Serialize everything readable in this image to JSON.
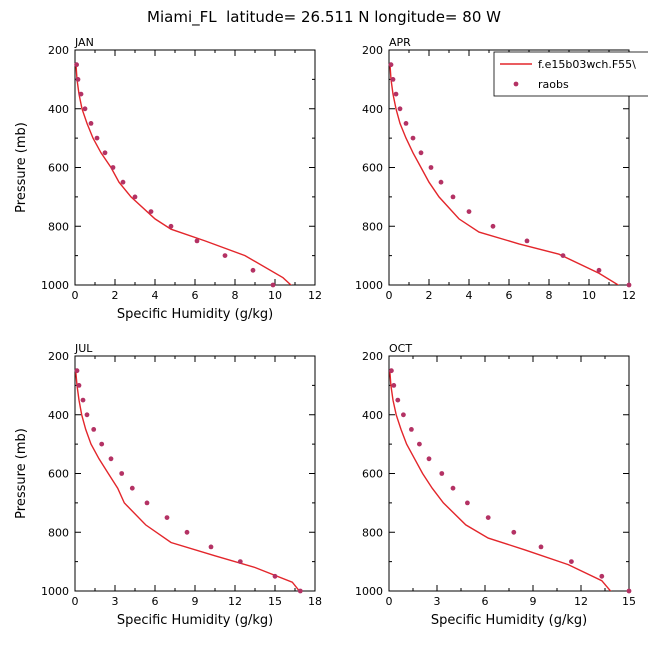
{
  "figure_title": "Miami_FL  latitude= 26.511 N longitude= 80 W",
  "colors": {
    "model_line": "#e3262b",
    "raobs_marker": "#b43264",
    "axes": "#000000"
  },
  "chart_data": [
    {
      "type": "line",
      "title": "JAN",
      "xlabel": "Specific Humidity (g/kg)",
      "ylabel": "Pressure (mb)",
      "xlim": [
        0,
        12
      ],
      "ylim": [
        1000,
        200
      ],
      "y_inverted": true,
      "xticks": [
        0,
        2,
        4,
        6,
        8,
        10,
        12
      ],
      "yticks": [
        200,
        400,
        600,
        800,
        1000
      ],
      "legend": null,
      "series": [
        {
          "name": "f.e15b03wch.F55\\",
          "style": "line",
          "x": [
            11.0,
            10.4,
            8.5,
            6.5,
            4.8,
            4.0,
            2.8,
            2.2,
            1.8,
            1.3,
            0.9,
            0.6,
            0.35,
            0.2,
            0.1,
            0.05
          ],
          "y": [
            1013,
            975,
            900,
            850,
            810,
            775,
            700,
            650,
            600,
            550,
            500,
            450,
            400,
            350,
            300,
            250
          ]
        },
        {
          "name": "raobs",
          "style": "marker",
          "x": [
            9.9,
            8.9,
            7.5,
            6.1,
            4.8,
            3.8,
            3.0,
            2.4,
            1.9,
            1.5,
            1.1,
            0.8,
            0.5,
            0.3,
            0.15,
            0.08
          ],
          "y": [
            1000,
            950,
            900,
            850,
            800,
            750,
            700,
            650,
            600,
            550,
            500,
            450,
            400,
            350,
            300,
            250
          ]
        }
      ]
    },
    {
      "type": "line",
      "title": "APR",
      "xlabel": "",
      "ylabel": "",
      "xlim": [
        0,
        12
      ],
      "ylim": [
        1000,
        200
      ],
      "y_inverted": true,
      "xticks": [
        0,
        2,
        4,
        6,
        8,
        10,
        12
      ],
      "yticks": [
        200,
        400,
        600,
        800,
        1000
      ],
      "legend": "top-right",
      "series": [
        {
          "name": "f.e15b03wch.F55\\",
          "style": "line",
          "x": [
            11.7,
            10.5,
            8.5,
            6.5,
            4.5,
            3.5,
            2.5,
            2.0,
            1.6,
            1.2,
            0.85,
            0.55,
            0.35,
            0.2,
            0.1,
            0.05
          ],
          "y": [
            1010,
            960,
            895,
            860,
            820,
            775,
            700,
            650,
            600,
            550,
            500,
            450,
            400,
            350,
            300,
            250
          ]
        },
        {
          "name": "raobs",
          "style": "marker",
          "x": [
            12.0,
            10.5,
            8.7,
            6.9,
            5.2,
            4.0,
            3.2,
            2.6,
            2.1,
            1.6,
            1.2,
            0.85,
            0.55,
            0.35,
            0.2,
            0.1
          ],
          "y": [
            1000,
            950,
            900,
            850,
            800,
            750,
            700,
            650,
            600,
            550,
            500,
            450,
            400,
            350,
            300,
            250
          ]
        }
      ]
    },
    {
      "type": "line",
      "title": "JUL",
      "xlabel": "Specific Humidity (g/kg)",
      "ylabel": "Pressure (mb)",
      "xlim": [
        0,
        18
      ],
      "ylim": [
        1000,
        200
      ],
      "y_inverted": true,
      "xticks": [
        0,
        3,
        6,
        9,
        12,
        15,
        18
      ],
      "yticks": [
        200,
        400,
        600,
        800,
        1000
      ],
      "legend": null,
      "series": [
        {
          "name": "f.e15b03wch.F55\\",
          "style": "line",
          "x": [
            17.0,
            16.3,
            13.5,
            10.5,
            7.2,
            5.3,
            3.7,
            3.2,
            2.5,
            1.8,
            1.2,
            0.8,
            0.5,
            0.3,
            0.15,
            0.05
          ],
          "y": [
            1010,
            970,
            920,
            880,
            835,
            775,
            700,
            650,
            600,
            550,
            500,
            450,
            400,
            350,
            300,
            250
          ]
        },
        {
          "name": "raobs",
          "style": "marker",
          "x": [
            16.9,
            15.0,
            12.4,
            10.2,
            8.4,
            6.9,
            5.4,
            4.3,
            3.5,
            2.7,
            2.0,
            1.4,
            0.9,
            0.6,
            0.3,
            0.15
          ],
          "y": [
            1000,
            950,
            900,
            850,
            800,
            750,
            700,
            650,
            600,
            550,
            500,
            450,
            400,
            350,
            300,
            250
          ]
        }
      ]
    },
    {
      "type": "line",
      "title": "OCT",
      "xlabel": "Specific Humidity (g/kg)",
      "ylabel": "",
      "xlim": [
        0,
        15
      ],
      "ylim": [
        1000,
        200
      ],
      "y_inverted": true,
      "xticks": [
        0,
        3,
        6,
        9,
        12,
        15
      ],
      "yticks": [
        200,
        400,
        600,
        800,
        1000
      ],
      "legend": null,
      "series": [
        {
          "name": "f.e15b03wch.F55\\",
          "style": "line",
          "x": [
            14.0,
            13.3,
            11.2,
            8.5,
            6.2,
            4.8,
            3.4,
            2.7,
            2.1,
            1.6,
            1.1,
            0.75,
            0.45,
            0.25,
            0.12,
            0.05
          ],
          "y": [
            1010,
            965,
            910,
            860,
            820,
            775,
            700,
            650,
            600,
            550,
            500,
            450,
            400,
            350,
            300,
            250
          ]
        },
        {
          "name": "raobs",
          "style": "marker",
          "x": [
            15.0,
            13.3,
            11.4,
            9.5,
            7.8,
            6.2,
            4.9,
            4.0,
            3.3,
            2.5,
            1.9,
            1.4,
            0.9,
            0.55,
            0.3,
            0.15
          ],
          "y": [
            1000,
            950,
            900,
            850,
            800,
            750,
            700,
            650,
            600,
            550,
            500,
            450,
            400,
            350,
            300,
            250
          ]
        }
      ]
    }
  ]
}
